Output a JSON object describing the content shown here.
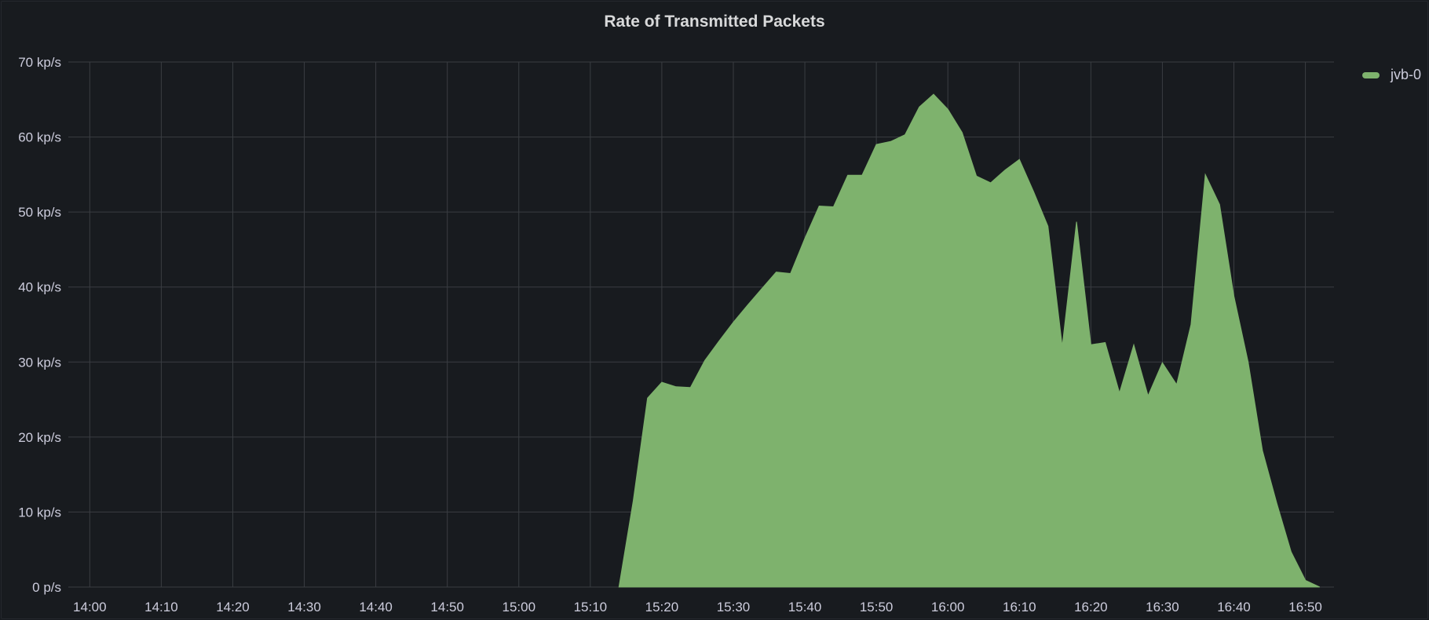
{
  "panel": {
    "title": "Rate of Transmitted Packets"
  },
  "legend": {
    "items": [
      {
        "label": "jvb-0",
        "color": "#7eb26d"
      }
    ]
  },
  "chart_data": {
    "type": "area",
    "title": "Rate of Transmitted Packets",
    "xlabel": "",
    "ylabel": "",
    "xlim": [
      "13:57",
      "16:54"
    ],
    "ylim": [
      0,
      70
    ],
    "y_ticks": [
      {
        "value": 0,
        "label": "0 p/s"
      },
      {
        "value": 10,
        "label": "10 kp/s"
      },
      {
        "value": 20,
        "label": "20 kp/s"
      },
      {
        "value": 30,
        "label": "30 kp/s"
      },
      {
        "value": 40,
        "label": "40 kp/s"
      },
      {
        "value": 50,
        "label": "50 kp/s"
      },
      {
        "value": 60,
        "label": "60 kp/s"
      },
      {
        "value": 70,
        "label": "70 kp/s"
      }
    ],
    "x_ticks": [
      "14:00",
      "14:10",
      "14:20",
      "14:30",
      "14:40",
      "14:50",
      "15:00",
      "15:10",
      "15:20",
      "15:30",
      "15:40",
      "15:50",
      "16:00",
      "16:10",
      "16:20",
      "16:30",
      "16:40",
      "16:50"
    ],
    "grid": true,
    "legend_position": "right",
    "series": [
      {
        "name": "jvb-0",
        "color": "#7eb26d",
        "x": [
          "15:14",
          "15:16",
          "15:18",
          "15:20",
          "15:22",
          "15:24",
          "15:26",
          "15:28",
          "15:30",
          "15:32",
          "15:34",
          "15:36",
          "15:38",
          "15:40",
          "15:42",
          "15:44",
          "15:46",
          "15:48",
          "15:50",
          "15:52",
          "15:54",
          "15:56",
          "15:58",
          "16:00",
          "16:02",
          "16:04",
          "16:06",
          "16:08",
          "16:10",
          "16:12",
          "16:14",
          "16:16",
          "16:18",
          "16:20",
          "16:22",
          "16:24",
          "16:26",
          "16:28",
          "16:30",
          "16:32",
          "16:34",
          "16:36",
          "16:38",
          "16:40",
          "16:42",
          "16:44",
          "16:46",
          "16:48",
          "16:50",
          "16:52"
        ],
        "y": [
          0,
          11.5,
          25.2,
          27.3,
          26.7,
          26.6,
          30.2,
          32.8,
          35.3,
          37.6,
          39.8,
          42,
          41.8,
          46.5,
          50.8,
          50.7,
          54.9,
          54.9,
          59,
          59.4,
          60.3,
          64,
          65.7,
          63.7,
          60.6,
          54.8,
          53.9,
          55.6,
          57,
          52.7,
          48.1,
          32.1,
          48.7,
          32.3,
          32.6,
          25.9,
          32.3,
          25.5,
          29.9,
          27,
          35,
          55,
          51,
          38.8,
          30,
          18.2,
          11.2,
          4.7,
          0.9,
          0
        ]
      }
    ]
  }
}
